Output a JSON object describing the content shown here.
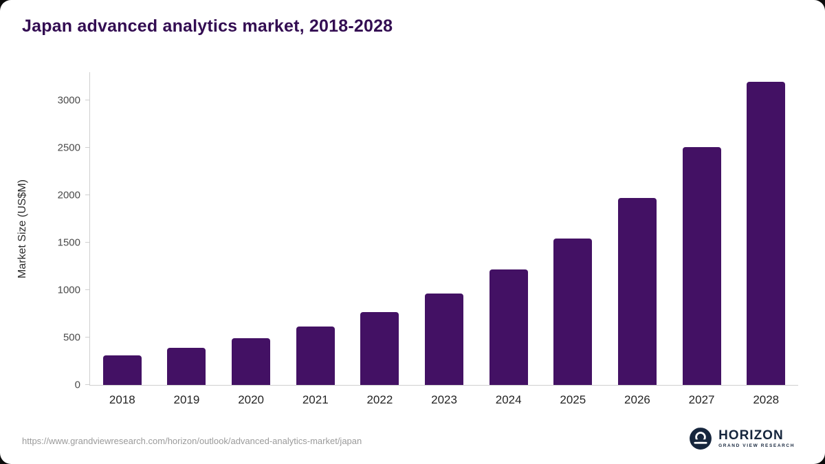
{
  "page": {
    "title": "Japan advanced analytics market, 2018-2028",
    "source_url": "https://www.grandviewresearch.com/horizon/outlook/advanced-analytics-market/japan",
    "logo": {
      "name": "HORIZON",
      "subtitle": "GRAND VIEW RESEARCH"
    }
  },
  "colors": {
    "bar": "#431164",
    "title": "#330d52",
    "axis": "#cfcfcf",
    "tick_text": "#4a4a4a",
    "x_tick_text": "#242424",
    "footer_text": "#9a9a9a",
    "logo_navy": "#16263d"
  },
  "chart_data": {
    "type": "bar",
    "categories": [
      "2018",
      "2019",
      "2020",
      "2021",
      "2022",
      "2023",
      "2024",
      "2025",
      "2026",
      "2027",
      "2028"
    ],
    "values": [
      315,
      395,
      490,
      615,
      770,
      965,
      1220,
      1545,
      1970,
      2510,
      3200
    ],
    "title": "Japan advanced analytics market, 2018-2028",
    "xlabel": "",
    "ylabel": "Market Size (US$M)",
    "ylim": [
      0,
      3300
    ],
    "yticks": [
      0,
      500,
      1000,
      1500,
      2000,
      2500,
      3000
    ],
    "grid": false,
    "legend": false
  }
}
